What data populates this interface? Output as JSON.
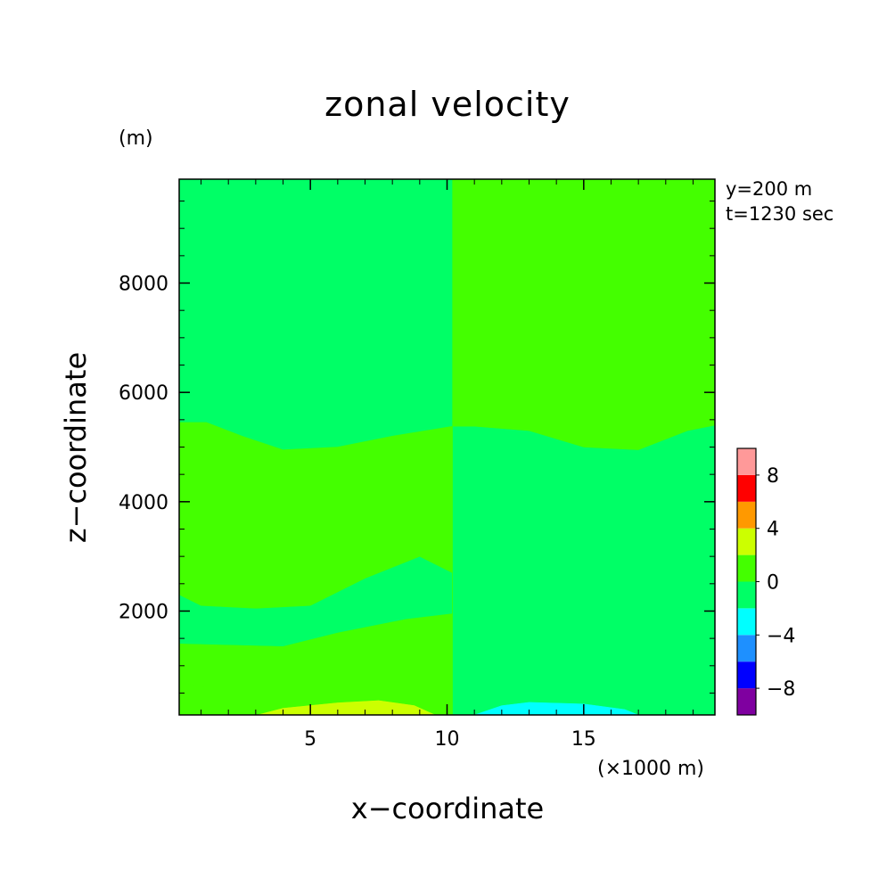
{
  "chart_data": {
    "type": "heatmap",
    "title": "zonal velocity",
    "xlabel": "x−coordinate",
    "ylabel": "z−coordinate",
    "x_unit_label": "(×1000 m)",
    "y_unit_label": "(m)",
    "xlim": [
      0.2,
      19.8
    ],
    "ylim": [
      100,
      9900
    ],
    "x_ticks": [
      5,
      10,
      15
    ],
    "y_ticks": [
      2000,
      4000,
      6000,
      8000
    ],
    "annotations": [
      "y=200 m",
      "t=1230 sec"
    ],
    "colorbar": {
      "levels": [
        -10,
        -8,
        -6,
        -4,
        -2,
        0,
        2,
        4,
        6,
        8,
        10
      ],
      "tick_labels": [
        -8,
        -4,
        0,
        4,
        8
      ],
      "colors": [
        "#7f00a0",
        "#0000ff",
        "#1e90ff",
        "#00ffff",
        "#00ff66",
        "#44ff00",
        "#ccff00",
        "#ff9900",
        "#ff0000",
        "#ff9999"
      ]
    },
    "regions": [
      {
        "level_range": [
          2,
          4
        ],
        "color": "#ccff00",
        "boundary": [
          [
            3.0,
            100
          ],
          [
            4.0,
            230
          ],
          [
            6.0,
            330
          ],
          [
            7.5,
            370
          ],
          [
            8.8,
            280
          ],
          [
            9.6,
            100
          ]
        ]
      },
      {
        "level_range": [
          -4,
          -2
        ],
        "color": "#00ffff",
        "boundary": [
          [
            11.0,
            100
          ],
          [
            12.0,
            270
          ],
          [
            13.0,
            330
          ],
          [
            15.0,
            300
          ],
          [
            16.5,
            200
          ],
          [
            17.0,
            100
          ]
        ]
      },
      {
        "level_range": [
          0,
          2
        ],
        "color": "#44ff00",
        "boundary": [
          [
            0.2,
            5450
          ],
          [
            1.2,
            5450
          ],
          [
            2.5,
            5200
          ],
          [
            4.0,
            4950
          ],
          [
            6.0,
            5000
          ],
          [
            8.0,
            5200
          ],
          [
            10.2,
            5380
          ],
          [
            10.2,
            100
          ],
          [
            9.6,
            100
          ],
          [
            8.8,
            280
          ],
          [
            7.5,
            370
          ],
          [
            6.0,
            330
          ],
          [
            4.0,
            230
          ],
          [
            3.0,
            100
          ],
          [
            0.2,
            100
          ],
          [
            0.2,
            700
          ],
          [
            1.2,
            600
          ],
          [
            0.2,
            400
          ],
          [
            0.2,
            1400
          ],
          [
            4.0,
            1350
          ],
          [
            6.0,
            1600
          ],
          [
            8.5,
            1850
          ],
          [
            10.2,
            1950
          ],
          [
            10.2,
            2700
          ],
          [
            9.0,
            3000
          ],
          [
            7.0,
            2600
          ],
          [
            5.0,
            2100
          ],
          [
            3.0,
            2050
          ],
          [
            1.0,
            2100
          ],
          [
            0.2,
            2300
          ]
        ]
      },
      {
        "level_range": [
          0,
          2
        ],
        "color": "#44ff00",
        "boundary": [
          [
            10.2,
            9900
          ],
          [
            19.8,
            9900
          ],
          [
            19.8,
            5400
          ],
          [
            18.8,
            5300
          ],
          [
            17.0,
            4950
          ],
          [
            15.0,
            5000
          ],
          [
            13.0,
            5300
          ],
          [
            11.0,
            5380
          ],
          [
            10.2,
            5380
          ]
        ]
      }
    ]
  }
}
